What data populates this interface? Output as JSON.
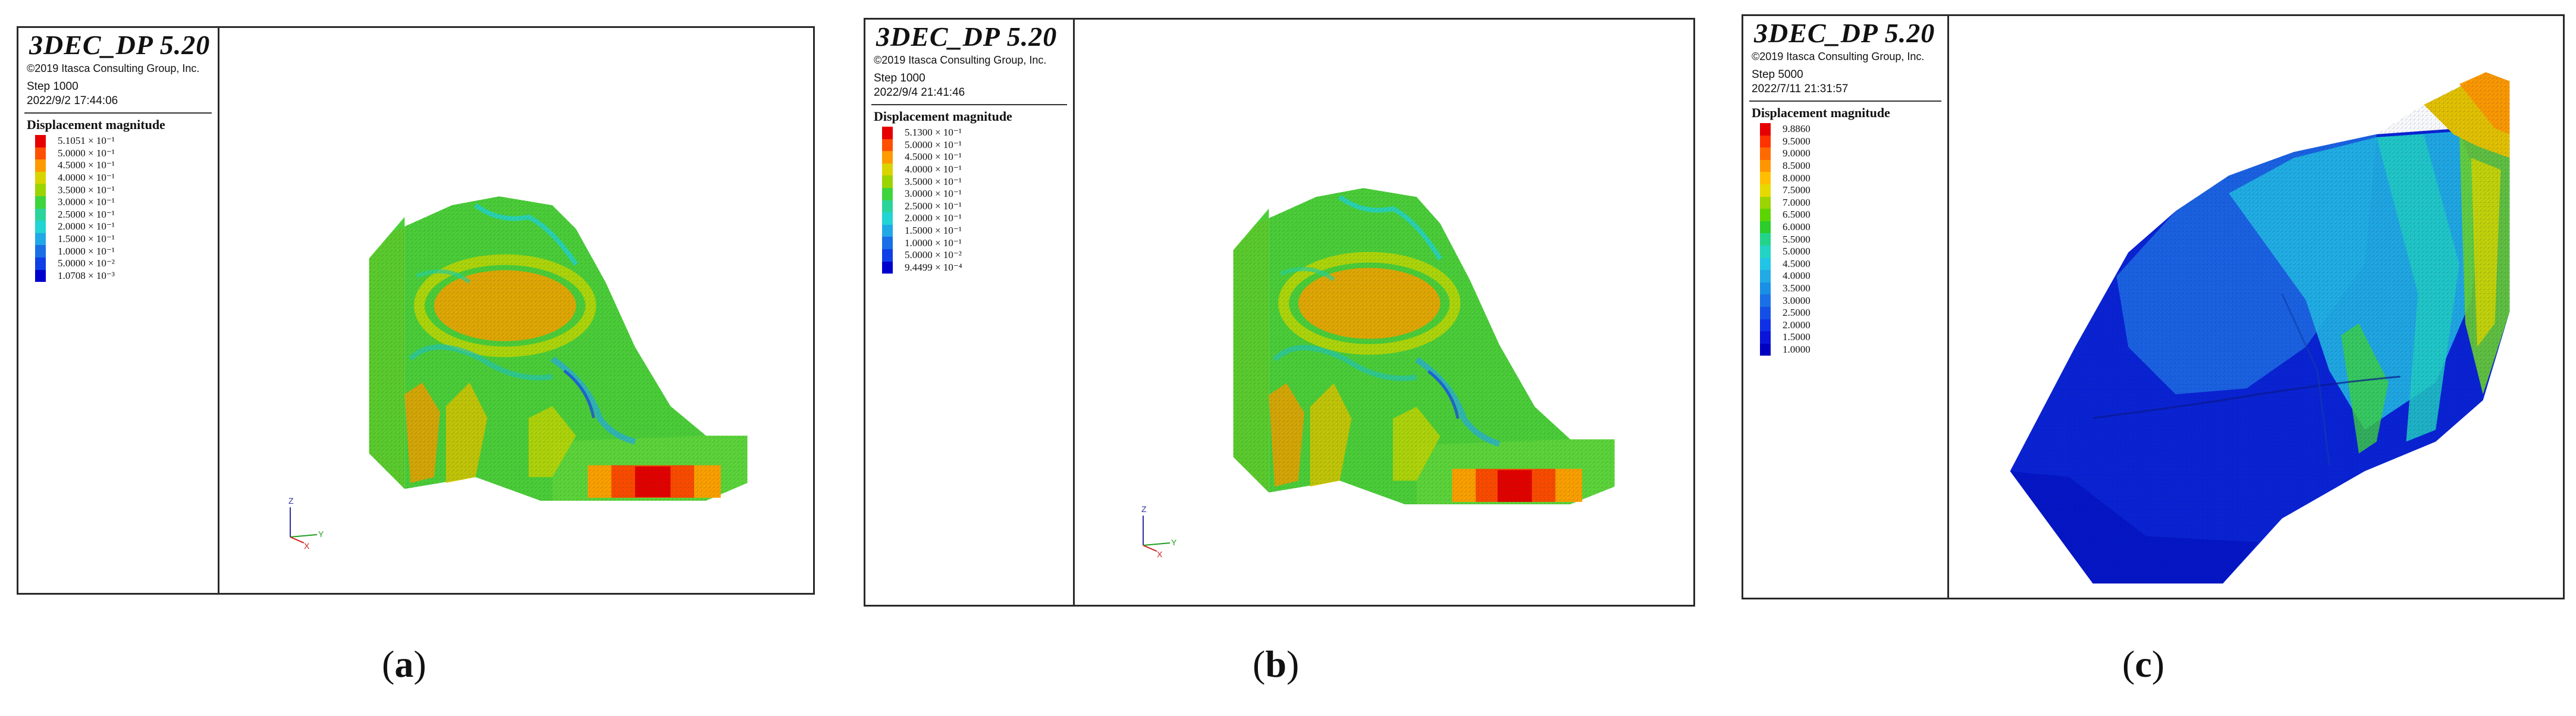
{
  "panels": [
    {
      "id": "a",
      "brand": "3DEC_DP 5.20",
      "copyright": "©2019 Itasca Consulting Group, Inc.",
      "step": "Step 1000",
      "timestamp": "2022/9/2 17:44:06",
      "legend_title": "Displacement magnitude",
      "legend": [
        {
          "label": "5.1051 × 10⁻¹",
          "color": "#e60000"
        },
        {
          "label": "5.0000 × 10⁻¹",
          "color": "#ff4f00"
        },
        {
          "label": "4.5000 × 10⁻¹",
          "color": "#ff9a00"
        },
        {
          "label": "4.0000 × 10⁻¹",
          "color": "#d9d400"
        },
        {
          "label": "3.5000 × 10⁻¹",
          "color": "#9bd400"
        },
        {
          "label": "3.0000 × 10⁻¹",
          "color": "#3ed43e"
        },
        {
          "label": "2.5000 × 10⁻¹",
          "color": "#2bd49b"
        },
        {
          "label": "2.0000 × 10⁻¹",
          "color": "#22d4d4"
        },
        {
          "label": "1.5000 × 10⁻¹",
          "color": "#21a8e6"
        },
        {
          "label": "1.0000 × 10⁻¹",
          "color": "#1a6fe6"
        },
        {
          "label": "5.0000 × 10⁻²",
          "color": "#0f3fe6"
        },
        {
          "label": "1.0708 × 10⁻³",
          "color": "#0000cc"
        }
      ],
      "caption": "a",
      "axis_labels": {
        "z": "Z",
        "y": "Y",
        "x": "X"
      }
    },
    {
      "id": "b",
      "brand": "3DEC_DP 5.20",
      "copyright": "©2019 Itasca Consulting Group, Inc.",
      "step": "Step 1000",
      "timestamp": "2022/9/4 21:41:46",
      "legend_title": "Displacement magnitude",
      "legend": [
        {
          "label": "5.1300 × 10⁻¹",
          "color": "#e60000"
        },
        {
          "label": "5.0000 × 10⁻¹",
          "color": "#ff4f00"
        },
        {
          "label": "4.5000 × 10⁻¹",
          "color": "#ff9a00"
        },
        {
          "label": "4.0000 × 10⁻¹",
          "color": "#d9d400"
        },
        {
          "label": "3.5000 × 10⁻¹",
          "color": "#9bd400"
        },
        {
          "label": "3.0000 × 10⁻¹",
          "color": "#3ed43e"
        },
        {
          "label": "2.5000 × 10⁻¹",
          "color": "#2bd49b"
        },
        {
          "label": "2.0000 × 10⁻¹",
          "color": "#22d4d4"
        },
        {
          "label": "1.5000 × 10⁻¹",
          "color": "#21a8e6"
        },
        {
          "label": "1.0000 × 10⁻¹",
          "color": "#1a6fe6"
        },
        {
          "label": "5.0000 × 10⁻²",
          "color": "#0f3fe6"
        },
        {
          "label": "9.4499 × 10⁻⁴",
          "color": "#0000cc"
        }
      ],
      "caption": "b",
      "axis_labels": {
        "z": "Z",
        "y": "Y",
        "x": "X"
      }
    },
    {
      "id": "c",
      "brand": "3DEC_DP 5.20",
      "copyright": "©2019 Itasca Consulting Group, Inc.",
      "step": "Step 5000",
      "timestamp": "2022/7/11 21:31:57",
      "legend_title": "Displacement magnitude",
      "legend": [
        {
          "label": "9.8860",
          "color": "#e60000"
        },
        {
          "label": "9.5000",
          "color": "#ff3300"
        },
        {
          "label": "9.0000",
          "color": "#ff6a00"
        },
        {
          "label": "8.5000",
          "color": "#ff9500"
        },
        {
          "label": "8.0000",
          "color": "#ffbf00"
        },
        {
          "label": "7.5000",
          "color": "#e6d900"
        },
        {
          "label": "7.0000",
          "color": "#9bd400"
        },
        {
          "label": "6.5000",
          "color": "#5cd400"
        },
        {
          "label": "6.0000",
          "color": "#2bcc2b"
        },
        {
          "label": "5.5000",
          "color": "#22d48a"
        },
        {
          "label": "5.0000",
          "color": "#22d4c4"
        },
        {
          "label": "4.5000",
          "color": "#22c4e6"
        },
        {
          "label": "4.0000",
          "color": "#22aae6"
        },
        {
          "label": "3.5000",
          "color": "#1a8fe6"
        },
        {
          "label": "3.0000",
          "color": "#1a70e6"
        },
        {
          "label": "2.5000",
          "color": "#1450e6"
        },
        {
          "label": "2.0000",
          "color": "#0f30e6"
        },
        {
          "label": "1.5000",
          "color": "#0a15d9"
        },
        {
          "label": "1.0000",
          "color": "#0000c0"
        }
      ],
      "caption": "c",
      "axis_labels": {
        "z": "",
        "y": "",
        "x": ""
      }
    }
  ]
}
